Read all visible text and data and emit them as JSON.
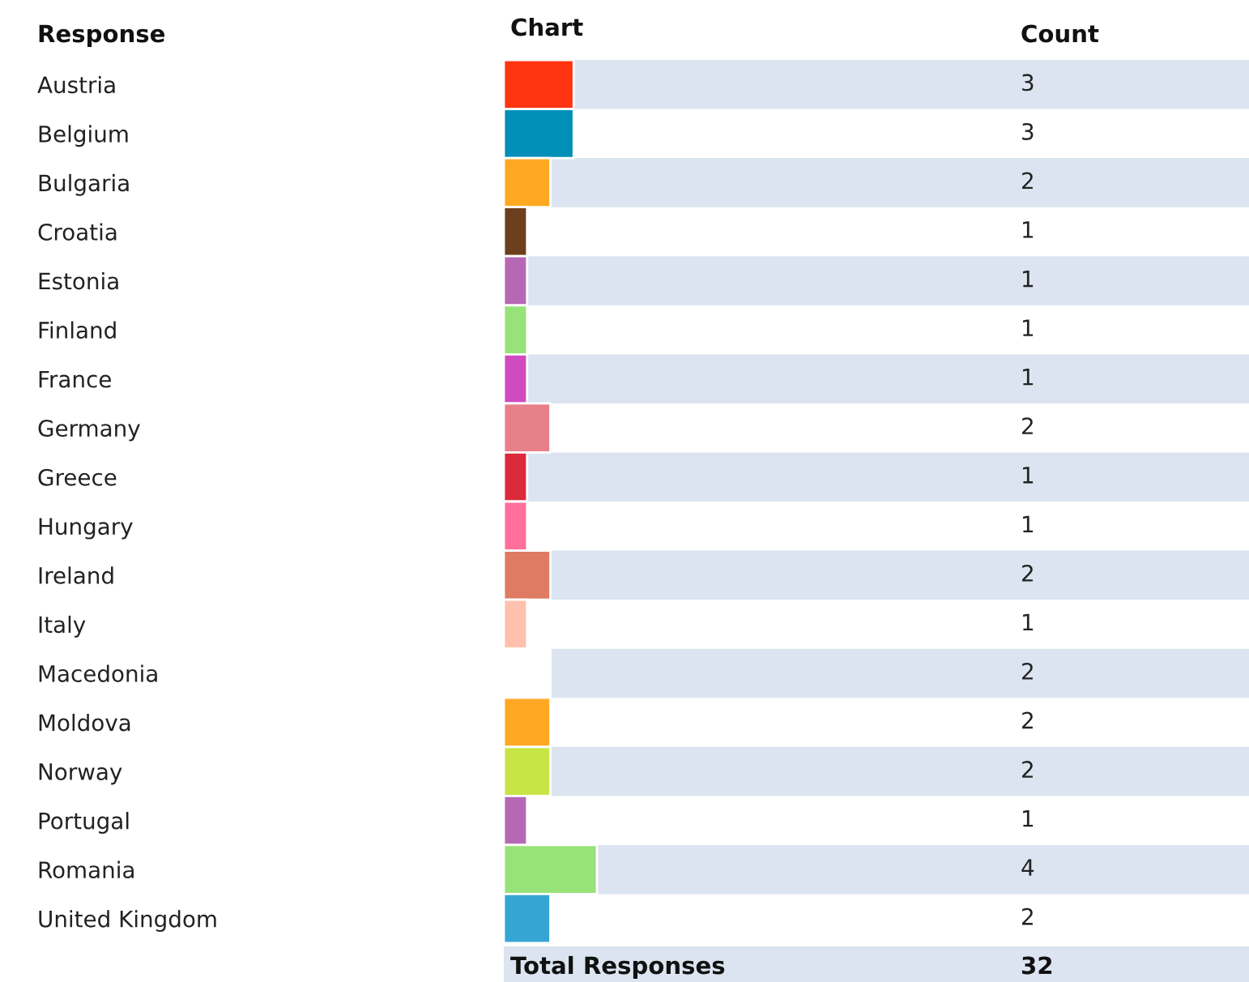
{
  "chart_data": {
    "type": "bar",
    "orientation": "horizontal",
    "title": "Chart",
    "ylabel": "Response",
    "categories": [
      "Austria",
      "Belgium",
      "Bulgaria",
      "Croatia",
      "Estonia",
      "Finland",
      "France",
      "Germany",
      "Greece",
      "Hungary",
      "Ireland",
      "Italy",
      "Macedonia",
      "Moldova",
      "Norway",
      "Portugal",
      "Romania",
      "United Kingdom"
    ],
    "values": [
      3,
      3,
      2,
      1,
      1,
      1,
      1,
      2,
      1,
      1,
      2,
      1,
      2,
      2,
      2,
      1,
      4,
      2
    ],
    "colors": [
      "#ff3411",
      "#008fb6",
      "#ffa823",
      "#6d3f1d",
      "#b668b4",
      "#98e27a",
      "#d04ac0",
      "#e8808a",
      "#dc2a3c",
      "#ff6f9b",
      "#de7b62",
      "#ffc1ad",
      "#ffffff",
      "#ffa823",
      "#c8e547",
      "#b668b4",
      "#98e27a",
      "#35a6d4"
    ],
    "data_labels": true,
    "annotations": [
      "Count",
      "Total Responses",
      "32"
    ]
  }
}
